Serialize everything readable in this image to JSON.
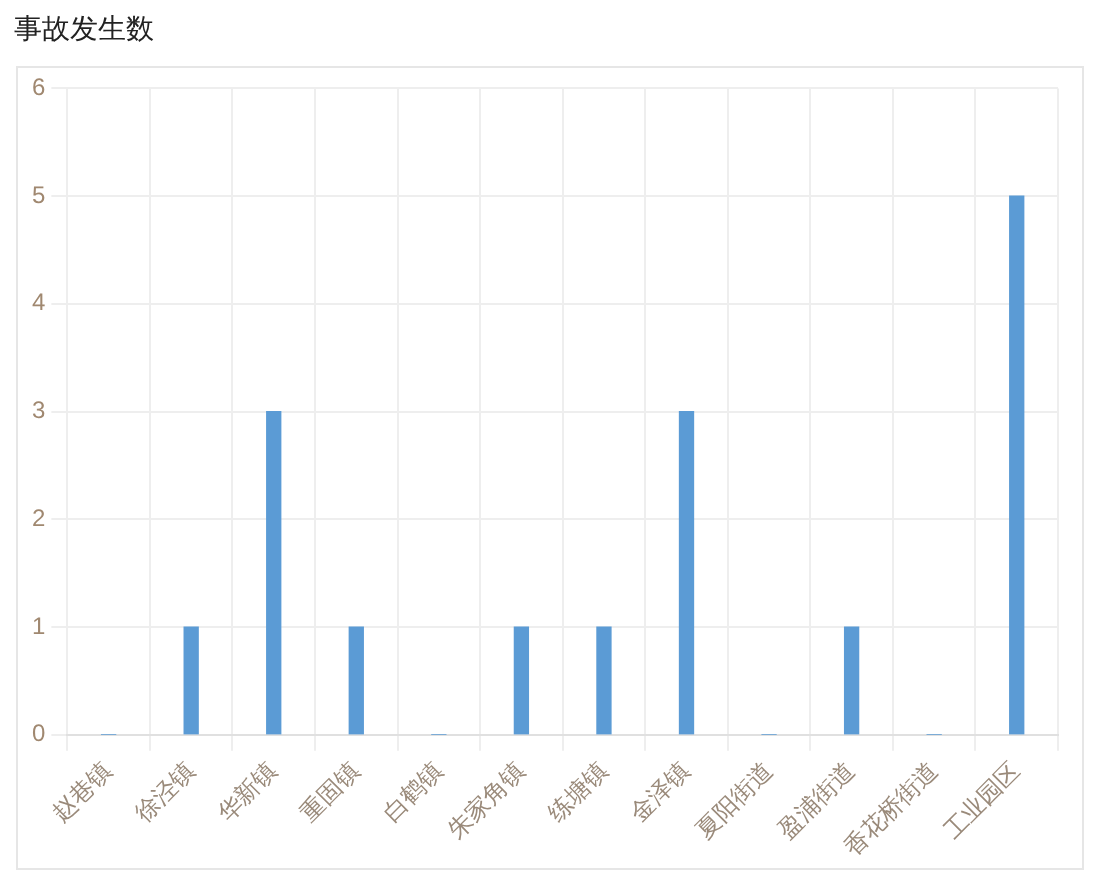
{
  "chart_data": {
    "type": "bar",
    "title": "事故发生数",
    "categories": [
      "赵巷镇",
      "徐泾镇",
      "华新镇",
      "重固镇",
      "白鹤镇",
      "朱家角镇",
      "练塘镇",
      "金泽镇",
      "夏阳街道",
      "盈浦街道",
      "香花桥街道",
      "工业园区"
    ],
    "values": [
      0,
      1,
      3,
      1,
      0,
      1,
      1,
      3,
      0,
      1,
      0,
      5
    ],
    "color": "#5b9bd5",
    "ylim": [
      0,
      6
    ],
    "yticks": [
      0,
      1,
      2,
      3,
      4,
      5,
      6
    ],
    "grid": true
  }
}
